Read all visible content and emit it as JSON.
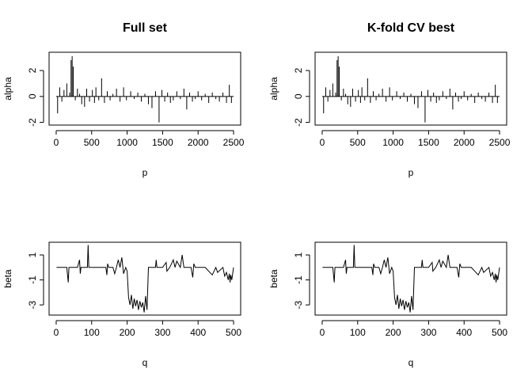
{
  "chart_data": [
    {
      "type": "line",
      "panel": "top-left",
      "title": "Full set",
      "xlabel": "p",
      "ylabel": "alpha",
      "xlim": [
        0,
        2500
      ],
      "ylim": [
        -2,
        3.2
      ],
      "xticks": [
        "0",
        "500",
        "1000",
        "1500",
        "2000",
        "2500"
      ],
      "yticks": [
        "-2",
        "0",
        "2"
      ],
      "grid": false,
      "style": "vertical-lines (type h)",
      "series": [
        {
          "x": [
            20,
            50,
            80,
            110,
            150,
            190,
            210,
            225,
            240,
            270,
            300,
            330,
            360,
            400,
            430,
            470,
            510,
            540,
            560,
            600,
            640,
            680,
            720,
            760,
            800,
            850,
            900,
            950,
            990,
            1050,
            1100,
            1150,
            1200,
            1250,
            1300,
            1350,
            1400,
            1450,
            1490,
            1530,
            1570,
            1610,
            1650,
            1700,
            1750,
            1800,
            1840,
            1880,
            1920,
            1960,
            2000,
            2050,
            2100,
            2150,
            2200,
            2250,
            2300,
            2350,
            2400,
            2440,
            2470
          ],
          "values": [
            -1.3,
            0.7,
            -0.4,
            0.5,
            1.0,
            0.3,
            2.8,
            3.1,
            2.3,
            -0.3,
            0.6,
            0.2,
            -0.6,
            -0.8,
            0.6,
            -0.4,
            0.5,
            -0.5,
            0.7,
            -0.3,
            1.4,
            -0.5,
            0.4,
            -0.3,
            0.2,
            0.6,
            -0.4,
            0.7,
            -0.3,
            0.4,
            -0.2,
            0.3,
            -0.4,
            0.2,
            -0.6,
            -0.9,
            0.4,
            -2.0,
            0.5,
            -0.4,
            0.3,
            -0.5,
            -0.3,
            0.4,
            -0.2,
            0.6,
            -1.0,
            0.3,
            -0.4,
            -0.2,
            0.4,
            -0.3,
            0.2,
            -0.5,
            0.3,
            -0.2,
            -0.4,
            0.3,
            -0.5,
            0.9,
            -0.5
          ]
        }
      ]
    },
    {
      "type": "line",
      "panel": "top-right",
      "title": "K-fold CV best",
      "xlabel": "p",
      "ylabel": "alpha",
      "xlim": [
        0,
        2500
      ],
      "ylim": [
        -2,
        3.2
      ],
      "xticks": [
        "0",
        "500",
        "1000",
        "1500",
        "2000",
        "2500"
      ],
      "yticks": [
        "-2",
        "0",
        "2"
      ],
      "grid": false,
      "style": "vertical-lines (type h)",
      "series": [
        {
          "x": [
            20,
            50,
            80,
            110,
            150,
            190,
            210,
            225,
            240,
            270,
            300,
            330,
            360,
            400,
            430,
            470,
            510,
            540,
            560,
            600,
            640,
            680,
            720,
            760,
            800,
            850,
            900,
            950,
            990,
            1050,
            1100,
            1150,
            1200,
            1250,
            1300,
            1350,
            1400,
            1450,
            1490,
            1530,
            1570,
            1610,
            1650,
            1700,
            1750,
            1800,
            1840,
            1880,
            1920,
            1960,
            2000,
            2050,
            2100,
            2150,
            2200,
            2250,
            2300,
            2350,
            2400,
            2440,
            2470
          ],
          "values": [
            -1.3,
            0.7,
            -0.4,
            0.5,
            1.0,
            0.3,
            2.8,
            3.1,
            2.3,
            -0.3,
            0.6,
            0.2,
            -0.6,
            -0.8,
            0.6,
            -0.4,
            0.5,
            -0.5,
            0.7,
            -0.3,
            1.4,
            -0.5,
            0.4,
            -0.3,
            0.2,
            0.6,
            -0.4,
            0.7,
            -0.3,
            0.4,
            -0.2,
            0.3,
            -0.4,
            0.2,
            -0.6,
            -0.9,
            0.4,
            -2.0,
            0.5,
            -0.4,
            0.3,
            -0.5,
            -0.3,
            0.4,
            -0.2,
            0.6,
            -1.0,
            0.3,
            -0.4,
            -0.2,
            0.4,
            -0.3,
            0.2,
            -0.5,
            0.3,
            -0.2,
            -0.4,
            0.3,
            -0.5,
            0.9,
            -0.5
          ]
        }
      ]
    },
    {
      "type": "line",
      "panel": "bottom-left",
      "title": "",
      "xlabel": "q",
      "ylabel": "beta",
      "xlim": [
        0,
        500
      ],
      "ylim": [
        -3.6,
        1.8
      ],
      "xticks": [
        "0",
        "100",
        "200",
        "300",
        "400",
        "500"
      ],
      "yticks": [
        "-3",
        "-1",
        "1"
      ],
      "grid": false,
      "style": "line",
      "series": [
        {
          "x": [
            1,
            30,
            34,
            36,
            40,
            60,
            66,
            68,
            70,
            88,
            90,
            92,
            100,
            140,
            143,
            145,
            148,
            160,
            165,
            170,
            175,
            180,
            185,
            190,
            196,
            200,
            204,
            208,
            212,
            216,
            220,
            224,
            228,
            232,
            236,
            240,
            244,
            248,
            252,
            256,
            260,
            280,
            282,
            284,
            300,
            310,
            312,
            320,
            330,
            335,
            340,
            350,
            355,
            360,
            380,
            385,
            388,
            392,
            420,
            440,
            450,
            455,
            470,
            475,
            480,
            485,
            488,
            490,
            492,
            495,
            500
          ],
          "values": [
            0,
            0,
            -1.2,
            0,
            0,
            0,
            0.6,
            -0.5,
            0,
            0,
            1.8,
            0,
            0,
            0,
            -0.6,
            0.3,
            0,
            0,
            -0.5,
            0,
            0.6,
            0,
            0.8,
            -0.5,
            0,
            -0.3,
            -2.4,
            -3.0,
            -2.2,
            -3.3,
            -2.5,
            -3.1,
            -2.6,
            -3.4,
            -2.7,
            -3.2,
            -2.8,
            -3.6,
            -2.3,
            -3.4,
            0,
            0,
            0.6,
            0,
            0,
            0.4,
            -0.3,
            0,
            0.6,
            0,
            0.5,
            0,
            1.0,
            0,
            0,
            -0.8,
            0.3,
            0,
            0,
            -0.6,
            0,
            -0.4,
            0,
            -0.7,
            -0.4,
            -1.0,
            -0.5,
            -1.2,
            -0.6,
            -1.0,
            0
          ]
        }
      ]
    },
    {
      "type": "line",
      "panel": "bottom-right",
      "title": "",
      "xlabel": "q",
      "ylabel": "beta",
      "xlim": [
        0,
        500
      ],
      "ylim": [
        -3.6,
        1.8
      ],
      "xticks": [
        "0",
        "100",
        "200",
        "300",
        "400",
        "500"
      ],
      "yticks": [
        "-3",
        "-1",
        "1"
      ],
      "grid": false,
      "style": "line",
      "series": [
        {
          "x": [
            1,
            30,
            34,
            36,
            40,
            60,
            66,
            68,
            70,
            88,
            90,
            92,
            100,
            140,
            143,
            145,
            148,
            160,
            165,
            170,
            175,
            180,
            185,
            190,
            196,
            200,
            204,
            208,
            212,
            216,
            220,
            224,
            228,
            232,
            236,
            240,
            244,
            248,
            252,
            256,
            260,
            280,
            282,
            284,
            300,
            310,
            312,
            320,
            330,
            335,
            340,
            350,
            355,
            360,
            380,
            385,
            388,
            392,
            420,
            440,
            450,
            455,
            470,
            475,
            480,
            485,
            488,
            490,
            492,
            495,
            500
          ],
          "values": [
            0,
            0,
            -1.2,
            0,
            0,
            0,
            0.6,
            -0.5,
            0,
            0,
            1.8,
            0,
            0,
            0,
            -0.6,
            0.3,
            0,
            0,
            -0.5,
            0,
            0.6,
            0,
            0.8,
            -0.5,
            0,
            -0.3,
            -2.4,
            -3.0,
            -2.2,
            -3.3,
            -2.5,
            -3.1,
            -2.6,
            -3.4,
            -2.7,
            -3.2,
            -2.8,
            -3.6,
            -2.3,
            -3.4,
            0,
            0,
            0.6,
            0,
            0,
            0.4,
            -0.3,
            0,
            0.6,
            0,
            0.5,
            0,
            1.0,
            0,
            0,
            -0.8,
            0.3,
            0,
            0,
            -0.6,
            0,
            -0.4,
            0,
            -0.7,
            -0.4,
            -1.0,
            -0.5,
            -1.2,
            -0.6,
            -1.0,
            0
          ]
        }
      ]
    }
  ]
}
